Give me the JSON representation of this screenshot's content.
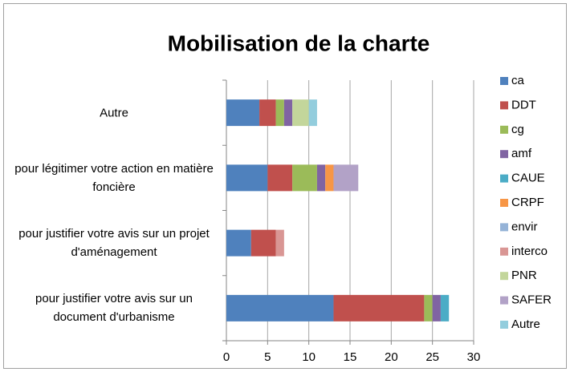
{
  "chart_data": {
    "type": "stacked_barh",
    "title": "Mobilisation de la charte",
    "categories": [
      "pour justifier votre avis sur un document d'urbanisme",
      "pour justifier votre avis sur un projet d'aménagement",
      "pour légitimer votre action en matière foncière",
      "Autre"
    ],
    "series": [
      {
        "name": "ca",
        "color": "#4f81bd",
        "values": [
          13,
          3,
          5,
          4
        ]
      },
      {
        "name": "DDT",
        "color": "#c0504d",
        "values": [
          11,
          3,
          3,
          2
        ]
      },
      {
        "name": "cg",
        "color": "#9bbb59",
        "values": [
          1,
          0,
          3,
          1
        ]
      },
      {
        "name": "amf",
        "color": "#8064a2",
        "values": [
          1,
          0,
          1,
          1
        ]
      },
      {
        "name": "CAUE",
        "color": "#4bacc6",
        "values": [
          1,
          0,
          0,
          0
        ]
      },
      {
        "name": "CRPF",
        "color": "#f79646",
        "values": [
          0,
          0,
          1,
          0
        ]
      },
      {
        "name": "envir",
        "color": "#95b3d7",
        "values": [
          0,
          0,
          0,
          0
        ]
      },
      {
        "name": "interco",
        "color": "#d99694",
        "values": [
          0,
          1,
          0,
          0
        ]
      },
      {
        "name": "PNR",
        "color": "#c3d69b",
        "values": [
          0,
          0,
          0,
          2
        ]
      },
      {
        "name": "SAFER",
        "color": "#b2a2c7",
        "values": [
          0,
          0,
          3,
          0
        ]
      },
      {
        "name": "Autre",
        "color": "#93cddd",
        "values": [
          0,
          0,
          0,
          1
        ]
      }
    ],
    "xlim": [
      0,
      30
    ],
    "xticks": [
      0,
      5,
      10,
      15,
      20,
      25,
      30
    ],
    "grid": true,
    "legend": "right"
  }
}
